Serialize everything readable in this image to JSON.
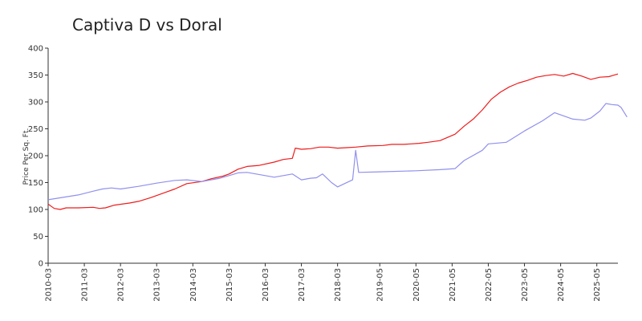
{
  "chart_data": {
    "type": "line",
    "title": "Captiva D vs Doral",
    "xlabel": "",
    "ylabel": "Price Per Sq. Ft.",
    "ylim": [
      0,
      400
    ],
    "yticks": [
      0,
      50,
      100,
      150,
      200,
      250,
      300,
      350,
      400
    ],
    "xrange": [
      "2010-03",
      "2025-12"
    ],
    "xticks": [
      "2010-03",
      "2011-03",
      "2012-03",
      "2013-03",
      "2014-03",
      "2015-03",
      "2016-03",
      "2017-03",
      "2018-03",
      "2019-05",
      "2020-05",
      "2021-05",
      "2022-05",
      "2023-05",
      "2024-05",
      "2025-05"
    ],
    "grid": false,
    "legend": "none",
    "series": [
      {
        "color": "#ee1c1c",
        "points": [
          [
            "2010-03",
            110
          ],
          [
            "2010-05",
            102
          ],
          [
            "2010-07",
            100
          ],
          [
            "2010-09",
            103
          ],
          [
            "2011-01",
            103
          ],
          [
            "2011-06",
            104
          ],
          [
            "2011-08",
            102
          ],
          [
            "2011-10",
            103
          ],
          [
            "2012-01",
            108
          ],
          [
            "2012-06",
            112
          ],
          [
            "2012-09",
            115
          ],
          [
            "2013-01",
            122
          ],
          [
            "2013-06",
            132
          ],
          [
            "2013-09",
            138
          ],
          [
            "2014-01",
            148
          ],
          [
            "2014-06",
            152
          ],
          [
            "2014-09",
            157
          ],
          [
            "2015-01",
            162
          ],
          [
            "2015-03",
            166
          ],
          [
            "2015-06",
            175
          ],
          [
            "2015-09",
            180
          ],
          [
            "2016-01",
            182
          ],
          [
            "2016-06",
            188
          ],
          [
            "2016-09",
            193
          ],
          [
            "2016-12",
            195
          ],
          [
            "2017-01",
            214
          ],
          [
            "2017-03",
            212
          ],
          [
            "2017-06",
            213
          ],
          [
            "2017-09",
            216
          ],
          [
            "2017-12",
            216
          ],
          [
            "2018-03",
            214
          ],
          [
            "2018-06",
            215
          ],
          [
            "2018-09",
            216
          ],
          [
            "2019-01",
            218
          ],
          [
            "2019-06",
            219
          ],
          [
            "2019-09",
            221
          ],
          [
            "2020-01",
            221
          ],
          [
            "2020-06",
            223
          ],
          [
            "2020-09",
            225
          ],
          [
            "2021-01",
            228
          ],
          [
            "2021-06",
            240
          ],
          [
            "2021-09",
            255
          ],
          [
            "2021-12",
            268
          ],
          [
            "2022-03",
            285
          ],
          [
            "2022-06",
            305
          ],
          [
            "2022-09",
            318
          ],
          [
            "2022-12",
            328
          ],
          [
            "2023-03",
            335
          ],
          [
            "2023-06",
            340
          ],
          [
            "2023-09",
            346
          ],
          [
            "2023-12",
            349
          ],
          [
            "2024-03",
            351
          ],
          [
            "2024-06",
            348
          ],
          [
            "2024-09",
            353
          ],
          [
            "2024-12",
            348
          ],
          [
            "2025-03",
            342
          ],
          [
            "2025-06",
            346
          ],
          [
            "2025-09",
            347
          ],
          [
            "2025-12",
            352
          ]
        ]
      },
      {
        "color": "#9090ee",
        "points": [
          [
            "2010-03",
            118
          ],
          [
            "2011-01",
            127
          ],
          [
            "2011-06",
            134
          ],
          [
            "2011-09",
            138
          ],
          [
            "2011-12",
            140
          ],
          [
            "2012-03",
            138
          ],
          [
            "2012-09",
            143
          ],
          [
            "2013-03",
            149
          ],
          [
            "2013-09",
            154
          ],
          [
            "2014-01",
            155
          ],
          [
            "2014-06",
            152
          ],
          [
            "2014-12",
            158
          ],
          [
            "2015-03",
            163
          ],
          [
            "2015-06",
            168
          ],
          [
            "2015-09",
            169
          ],
          [
            "2016-03",
            163
          ],
          [
            "2016-06",
            160
          ],
          [
            "2016-09",
            163
          ],
          [
            "2016-12",
            166
          ],
          [
            "2017-03",
            155
          ],
          [
            "2017-06",
            158
          ],
          [
            "2017-08",
            159
          ],
          [
            "2017-10",
            166
          ],
          [
            "2018-01",
            150
          ],
          [
            "2018-03",
            142
          ],
          [
            "2018-08",
            155
          ],
          [
            "2018-09",
            210
          ],
          [
            "2018-10",
            169
          ],
          [
            "2019-05",
            170
          ],
          [
            "2020-05",
            172
          ],
          [
            "2021-01",
            174
          ],
          [
            "2021-06",
            176
          ],
          [
            "2021-09",
            191
          ],
          [
            "2022-03",
            210
          ],
          [
            "2022-05",
            222
          ],
          [
            "2022-11",
            225
          ],
          [
            "2023-05",
            246
          ],
          [
            "2023-11",
            265
          ],
          [
            "2024-03",
            280
          ],
          [
            "2024-09",
            268
          ],
          [
            "2025-01",
            266
          ],
          [
            "2025-03",
            270
          ],
          [
            "2025-06",
            283
          ],
          [
            "2025-08",
            297
          ],
          [
            "2025-10",
            295
          ],
          [
            "2025-12",
            294
          ],
          [
            "2026-01",
            290
          ],
          [
            "2026-03",
            272
          ]
        ]
      }
    ]
  }
}
